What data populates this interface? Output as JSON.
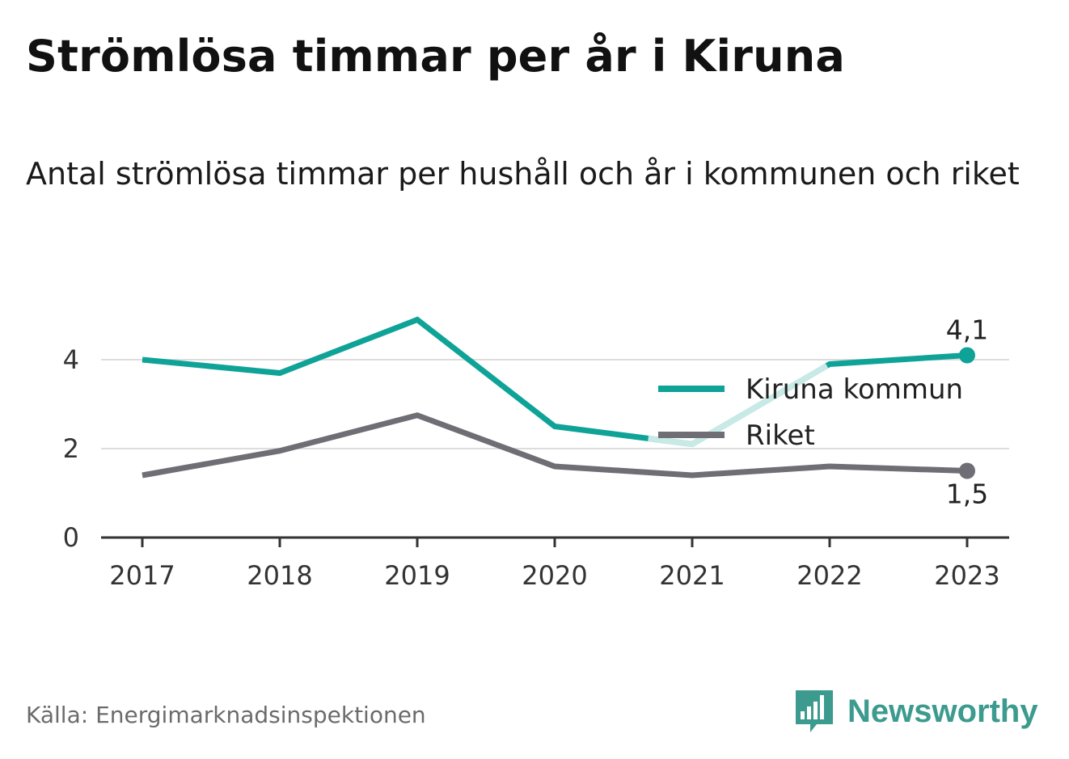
{
  "header": {
    "title": "Strömlösa timmar per år i Kiruna",
    "subtitle": "Antal strömlösa timmar per hushåll och år i kommunen och riket"
  },
  "footer": {
    "source": "Källa: Energimarknadsinspektionen",
    "brand": "Newsworthy",
    "brand_icon": "bar-chart-speech-bubble-icon"
  },
  "colors": {
    "kiruna": "#0fa398",
    "kiruna_faded": "#c8eae7",
    "riket": "#6e6e74",
    "grid": "#dddddd",
    "axis": "#333333",
    "brand": "#3c9b8e"
  },
  "chart_data": {
    "type": "line",
    "title": "Strömlösa timmar per år i Kiruna",
    "subtitle": "Antal strömlösa timmar per hushåll och år i kommunen och riket",
    "x": [
      "2017",
      "2018",
      "2019",
      "2020",
      "2021",
      "2022",
      "2023"
    ],
    "ylim": [
      0,
      5
    ],
    "yticks": [
      0,
      2,
      4
    ],
    "grid": true,
    "legend_position": "center-right",
    "series": [
      {
        "name": "Kiruna kommun",
        "values": [
          4.0,
          3.7,
          4.9,
          2.5,
          2.1,
          3.9,
          4.1
        ],
        "end_label": "4,1"
      },
      {
        "name": "Riket",
        "values": [
          1.4,
          1.95,
          2.75,
          1.6,
          1.4,
          1.6,
          1.5
        ],
        "end_label": "1,5"
      }
    ]
  }
}
